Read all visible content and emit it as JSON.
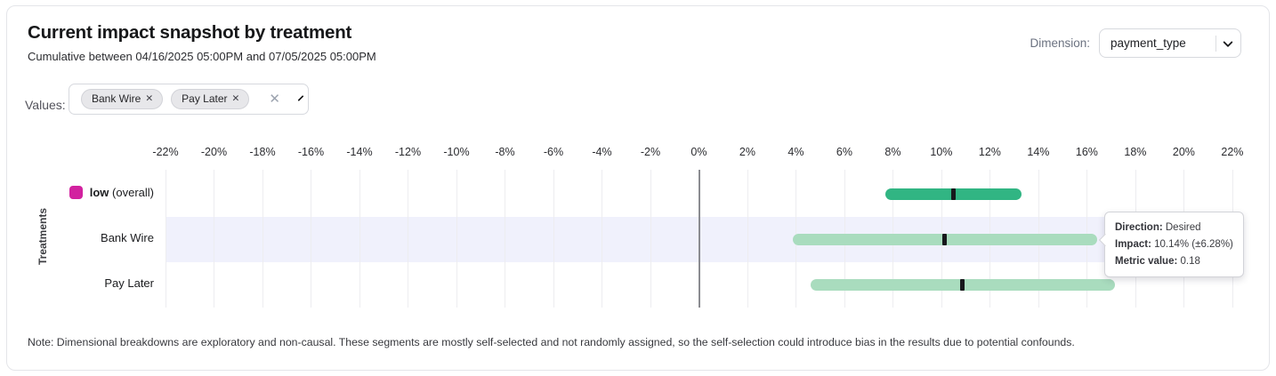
{
  "header": {
    "title": "Current impact snapshot by treatment",
    "subtitle": "Cumulative between 04/16/2025 05:00PM and 07/05/2025 05:00PM",
    "dimension_label": "Dimension:",
    "dimension_value": "payment_type"
  },
  "filters": {
    "values_label": "Values:",
    "chips": [
      {
        "label": "Bank Wire",
        "remove_icon": "✕"
      },
      {
        "label": "Pay Later",
        "remove_icon": "✕"
      }
    ],
    "clear_icon": "✕"
  },
  "chart_data": {
    "type": "bar",
    "subtype": "horizontal-confidence-interval",
    "title": "Current impact snapshot by treatment",
    "ylabel": "Treatments",
    "x_unit": "%",
    "xlim": [
      -22,
      22.15
    ],
    "grid": true,
    "tick_values": [
      -22,
      -20,
      -18,
      -16,
      -14,
      -12,
      -10,
      -8,
      -6,
      -4,
      -2,
      0,
      2,
      4,
      6,
      8,
      10,
      12,
      14,
      16,
      18,
      20,
      22
    ],
    "tick_labels": [
      "-22%",
      "-20%",
      "-18%",
      "-16%",
      "-14%",
      "-12%",
      "-10%",
      "-8%",
      "-6%",
      "-4%",
      "-2%",
      "0%",
      "2%",
      "4%",
      "6%",
      "8%",
      "10%",
      "12%",
      "14%",
      "16%",
      "18%",
      "20%",
      "22%"
    ],
    "colors": {
      "band": "#f0f1fc",
      "grid": "#ededf0",
      "zero_line": "#8b8c91",
      "marker": "#17181c",
      "overall_bar": "#31b583",
      "segment_bar": "#a9dcbe",
      "legend_swatch": "#d2219f"
    },
    "rows": [
      {
        "label_bold": "low",
        "label_suffix": " (overall)",
        "swatch_color": "#d2219f",
        "bar_color": "#31b583",
        "impact": 10.5,
        "ci_low": 7.7,
        "ci_high": 13.3,
        "highlighted": false
      },
      {
        "label": "Bank Wire",
        "bar_color": "#a9dcbe",
        "impact": 10.14,
        "ci_low": 3.86,
        "ci_high": 16.42,
        "highlighted": true
      },
      {
        "label": "Pay Later",
        "bar_color": "#a9dcbe",
        "impact": 10.86,
        "ci_low": 4.6,
        "ci_high": 17.15,
        "highlighted": false
      }
    ]
  },
  "tooltip": {
    "direction_label": "Direction:",
    "direction_value": "Desired",
    "impact_label": "Impact:",
    "impact_value": "10.14% (±6.28%)",
    "metric_label": "Metric value:",
    "metric_value": "0.18"
  },
  "note": "Note: Dimensional breakdowns are exploratory and non-causal. These segments are mostly self-selected and not randomly assigned, so the self-selection could introduce bias in the results due to potential confounds."
}
